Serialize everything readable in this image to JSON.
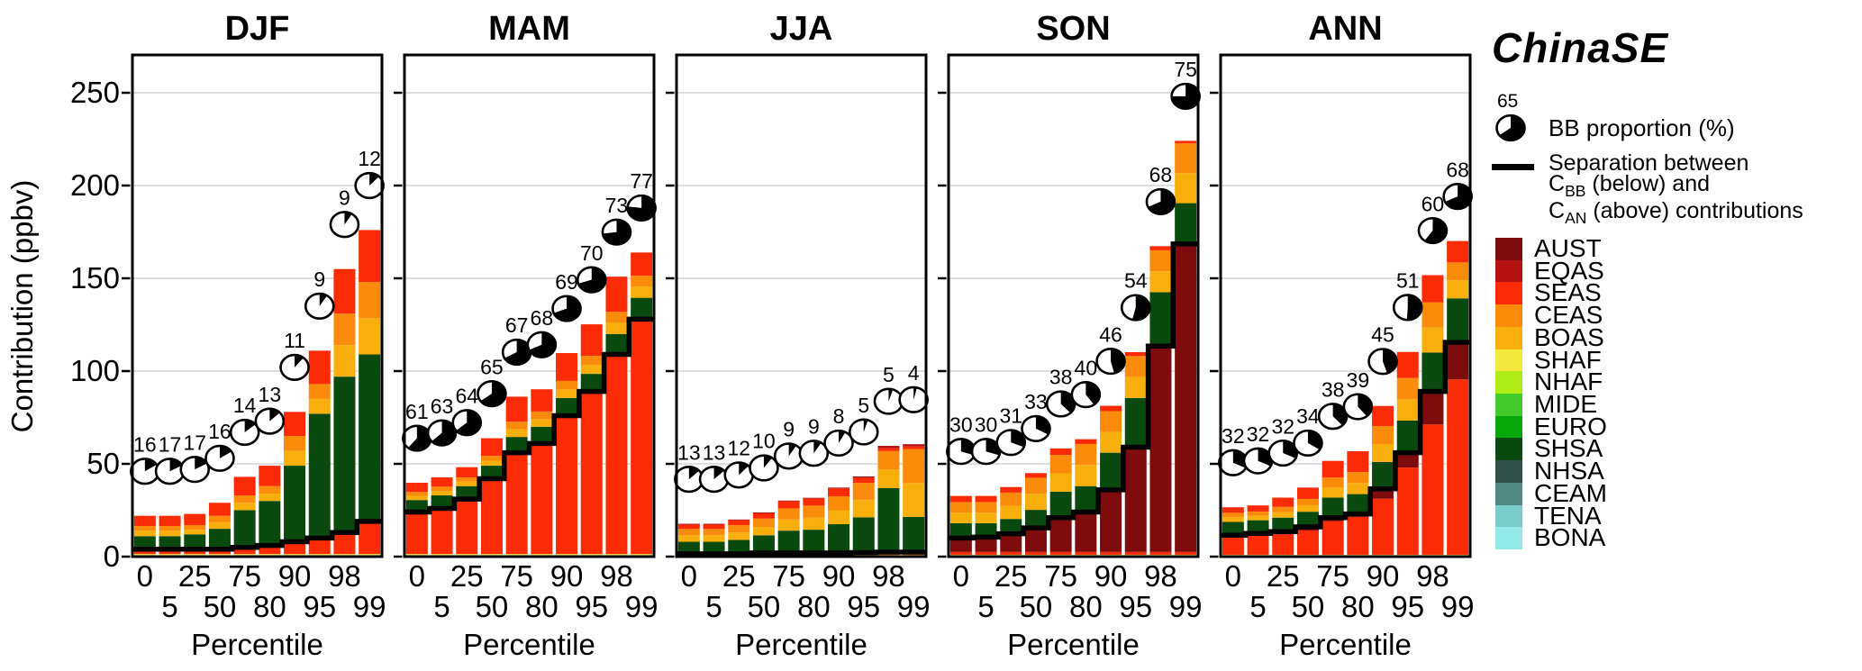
{
  "chart_data": {
    "type": "bar",
    "stacked": true,
    "title_right": "ChinaSE",
    "xlabel": "Percentile",
    "ylabel": "Contribution (ppbv)",
    "ylim": [
      0,
      270
    ],
    "yticks": [
      0,
      50,
      100,
      150,
      200,
      250
    ],
    "grid": true,
    "categories": [
      "0",
      "5",
      "25",
      "50",
      "75",
      "80",
      "90",
      "95",
      "98",
      "99"
    ],
    "regions": [
      {
        "name": "AUST",
        "color": "#7E0C0C"
      },
      {
        "name": "EQAS",
        "color": "#B51212"
      },
      {
        "name": "SEAS",
        "color": "#FB2C05"
      },
      {
        "name": "CEAS",
        "color": "#FB8C0B"
      },
      {
        "name": "BOAS",
        "color": "#F9AF0B"
      },
      {
        "name": "SHAF",
        "color": "#F2E93C"
      },
      {
        "name": "NHAF",
        "color": "#AEEB17"
      },
      {
        "name": "MIDE",
        "color": "#41CB2A"
      },
      {
        "name": "EURO",
        "color": "#07A60B"
      },
      {
        "name": "SHSA",
        "color": "#0B4A0E"
      },
      {
        "name": "NHSA",
        "color": "#315049"
      },
      {
        "name": "CEAM",
        "color": "#528A82"
      },
      {
        "name": "TENA",
        "color": "#79CCC8"
      },
      {
        "name": "BONA",
        "color": "#93E9E5"
      }
    ],
    "colors": {
      "separation_line": "#000000",
      "grid": "#d4d4d4",
      "pie_fill": "#ffffff",
      "pie_slice": "#000000",
      "panel_border": "#000000"
    },
    "panels": [
      {
        "title": "DJF",
        "bb_pie_pct": [
          16,
          17,
          17,
          16,
          14,
          13,
          11,
          9,
          9,
          12
        ],
        "cbb_separation": [
          4,
          4,
          4,
          4,
          5,
          6,
          8,
          10,
          13,
          19
        ],
        "series": [
          {
            "region": "NHAF",
            "part": "BB",
            "values": [
              0.7,
              0.7,
              0.7,
              0.7,
              0.7,
              0.7,
              0.7,
              0.7,
              0.7,
              0.7
            ]
          },
          {
            "region": "SHAF",
            "part": "BB",
            "values": [
              0.7,
              0.7,
              0.7,
              0.7,
              0.7,
              0.7,
              0.7,
              0.7,
              0.7,
              0.7
            ]
          },
          {
            "region": "SEAS",
            "part": "BB",
            "values": [
              2.6,
              2.6,
              2.6,
              2.6,
              3.6,
              4.6,
              6.6,
              8.6,
              11.6,
              17.6
            ]
          },
          {
            "region": "SHSA",
            "part": "AN",
            "values": [
              7,
              7,
              8,
              11,
              20,
              24,
              41,
              67,
              84,
              90
            ]
          },
          {
            "region": "BOAS",
            "part": "AN",
            "values": [
              3,
              3,
              2.5,
              3.5,
              4,
              4,
              8,
              8,
              17,
              19.5
            ]
          },
          {
            "region": "CEAS",
            "part": "AN",
            "values": [
              2.5,
              2.5,
              2.5,
              3.5,
              4,
              4,
              8,
              8,
              17,
              19.5
            ]
          },
          {
            "region": "SEAS",
            "part": "AN",
            "values": [
              5.5,
              5.5,
              6,
              7,
              10,
              11,
              13,
              18,
              24,
              28
            ]
          }
        ]
      },
      {
        "title": "MAM",
        "bb_pie_pct": [
          61,
          63,
          64,
          65,
          67,
          68,
          69,
          70,
          73,
          77
        ],
        "cbb_separation": [
          24,
          26,
          31,
          42,
          56,
          61,
          76,
          89,
          109,
          128
        ],
        "series": [
          {
            "region": "NHAF",
            "part": "BB",
            "values": [
              0.7,
              0.7,
              0.7,
              0.7,
              0.7,
              0.7,
              0.7,
              0.7,
              0.7,
              0.7
            ]
          },
          {
            "region": "SHAF",
            "part": "BB",
            "values": [
              0.7,
              0.7,
              0.7,
              0.7,
              0.7,
              0.7,
              0.7,
              0.7,
              0.7,
              0.7
            ]
          },
          {
            "region": "SEAS",
            "part": "BB",
            "values": [
              22.6,
              24.6,
              29.6,
              40.6,
              54.6,
              59.6,
              74.6,
              87.6,
              107.6,
              126.6
            ]
          },
          {
            "region": "SHSA",
            "part": "AN",
            "values": [
              6.5,
              7,
              7,
              7,
              8.5,
              9,
              9.5,
              9.5,
              11,
              11.5
            ]
          },
          {
            "region": "BOAS",
            "part": "AN",
            "values": [
              2.2,
              2.4,
              2.4,
              2.7,
              4.1,
              4.1,
              4.6,
              4.9,
              6,
              6
            ]
          },
          {
            "region": "CEAS",
            "part": "AN",
            "values": [
              2.1,
              2.3,
              2.3,
              2.6,
              4.1,
              4.1,
              4.6,
              4.8,
              5.9,
              5.9
            ]
          },
          {
            "region": "SEAS",
            "part": "AN",
            "values": [
              5,
              5,
              5.5,
              9.5,
              13.5,
              12,
              15,
              17,
              19,
              12.5
            ]
          }
        ]
      },
      {
        "title": "JJA",
        "bb_pie_pct": [
          13,
          13,
          12,
          10,
          9,
          9,
          8,
          5,
          5,
          4
        ],
        "cbb_separation": [
          1.5,
          1.5,
          1.5,
          2,
          2,
          2,
          2,
          2.2,
          2.4,
          2.4
        ],
        "series": [
          {
            "region": "NHAF",
            "part": "BB",
            "values": [
              0.4,
              0.4,
              0.4,
              0.4,
              0.4,
              0.4,
              0.4,
              0.4,
              0.4,
              0.4
            ]
          },
          {
            "region": "SHAF",
            "part": "BB",
            "values": [
              0.4,
              0.4,
              0.4,
              0.4,
              0.4,
              0.4,
              0.4,
              0.4,
              0.4,
              0.4
            ]
          },
          {
            "region": "CEAS",
            "part": "BB",
            "values": [
              0.3,
              0.3,
              0.3,
              0.8,
              0.8,
              0.8,
              0.8,
              1.0,
              1.2,
              1.2
            ]
          },
          {
            "region": "AUST",
            "part": "BB",
            "values": [
              0.4,
              0.4,
              0.4,
              0.4,
              0.4,
              0.4,
              0.4,
              0.4,
              0.4,
              0.4
            ]
          },
          {
            "region": "SHSA",
            "part": "AN",
            "values": [
              6.5,
              6.5,
              7.5,
              9.5,
              12,
              12.5,
              15.5,
              19,
              34.5,
              19
            ]
          },
          {
            "region": "BOAS",
            "part": "AN",
            "values": [
              3.5,
              3.5,
              4,
              4.5,
              6,
              6.5,
              7.5,
              9.3,
              10,
              18.3
            ]
          },
          {
            "region": "CEAS",
            "part": "AN",
            "values": [
              3.4,
              3.4,
              4,
              4.5,
              6,
              6.5,
              7.5,
              9.2,
              10,
              18.2
            ]
          },
          {
            "region": "SEAS",
            "part": "AN",
            "values": [
              2.3,
              2.3,
              2.5,
              2.8,
              3.7,
              3.7,
              4.2,
              2.8,
              1.5,
              1.5
            ]
          },
          {
            "region": "EQAS",
            "part": "AN",
            "values": [
              0.5,
              0.5,
              0.5,
              0.5,
              0.5,
              0.5,
              0.5,
              0.7,
              1.3,
              1.2
            ]
          }
        ]
      },
      {
        "title": "SON",
        "bb_pie_pct": [
          30,
          30,
          31,
          33,
          38,
          40,
          46,
          54,
          68,
          75
        ],
        "cbb_separation": [
          10,
          10.5,
          12.3,
          15.5,
          21,
          24,
          36,
          59,
          113.5,
          168.5
        ],
        "series": [
          {
            "region": "NHAF",
            "part": "BB",
            "values": [
              0.5,
              0.5,
              0.5,
              0.5,
              0.5,
              0.5,
              0.5,
              0.5,
              0.5,
              0.5
            ]
          },
          {
            "region": "SHAF",
            "part": "BB",
            "values": [
              0.5,
              0.5,
              0.5,
              0.5,
              0.5,
              0.5,
              0.5,
              0.5,
              0.5,
              0.5
            ]
          },
          {
            "region": "SEAS",
            "part": "BB",
            "values": [
              1.5,
              1.5,
              1.5,
              1.5,
              1.5,
              1.5,
              1.5,
              1.5,
              1.5,
              1.5
            ]
          },
          {
            "region": "AUST",
            "part": "BB",
            "values": [
              7.5,
              8,
              9.8,
              13,
              18.5,
              21.5,
              33.5,
              56.5,
              111,
              166
            ]
          },
          {
            "region": "SHSA",
            "part": "AN",
            "values": [
              8,
              7.5,
              8,
              9.7,
              14,
              14,
              20,
              26.5,
              29,
              22
            ]
          },
          {
            "region": "BOAS",
            "part": "AN",
            "values": [
              5.7,
              5.7,
              7.1,
              8.7,
              9.9,
              11.4,
              11.2,
              11.3,
              11.3,
              16.2
            ]
          },
          {
            "region": "CEAS",
            "part": "AN",
            "values": [
              5.7,
              5.7,
              7.1,
              8.6,
              9.9,
              11.3,
              11.2,
              11.3,
              11.3,
              16.1
            ]
          },
          {
            "region": "SEAS",
            "part": "AN",
            "values": [
              3.3,
              3.3,
              3,
              2.5,
              3.5,
              2.6,
              2.9,
              2.1,
              2.2,
              1.3
            ]
          }
        ]
      },
      {
        "title": "ANN",
        "bb_pie_pct": [
          32,
          32,
          32,
          34,
          38,
          39,
          45,
          51,
          60,
          68
        ],
        "cbb_separation": [
          11.5,
          12.5,
          13.5,
          16,
          21,
          23,
          36.5,
          56,
          89,
          115.5
        ],
        "series": [
          {
            "region": "NHAF",
            "part": "BB",
            "values": [
              0.5,
              0.5,
              0.5,
              0.5,
              0.5,
              0.5,
              0.5,
              0.5,
              0.5,
              0.5
            ]
          },
          {
            "region": "SHAF",
            "part": "BB",
            "values": [
              0.5,
              0.5,
              0.5,
              0.5,
              0.5,
              0.5,
              0.5,
              0.5,
              0.5,
              0.5
            ]
          },
          {
            "region": "SEAS",
            "part": "BB",
            "values": [
              9.5,
              10.2,
              11.1,
              13.1,
              18.1,
              20.4,
              30.2,
              47,
              70.2,
              94.5
            ]
          },
          {
            "region": "AUST",
            "part": "BB",
            "values": [
              1,
              1.3,
              1.4,
              1.9,
              1.9,
              1.6,
              5.3,
              8,
              17.8,
              20
            ]
          },
          {
            "region": "SHSA",
            "part": "AN",
            "values": [
              7.2,
              7.1,
              7.5,
              8.2,
              10.8,
              10.7,
              14.5,
              17.3,
              21,
              23.7
            ]
          },
          {
            "region": "BOAS",
            "part": "AN",
            "values": [
              2.5,
              2.4,
              2.9,
              3.5,
              5.4,
              6,
              9.7,
              11.5,
              13.5,
              9.7
            ]
          },
          {
            "region": "CEAS",
            "part": "AN",
            "values": [
              2.4,
              2.3,
              2.9,
              3.4,
              5.4,
              5.9,
              9.7,
              11.5,
              13.5,
              9.7
            ]
          },
          {
            "region": "SEAS",
            "part": "AN",
            "values": [
              3,
              3.3,
              5,
              6.1,
              9,
              11.2,
              10.8,
              14,
              14.7,
              11.5
            ]
          }
        ]
      }
    ]
  },
  "legend": {
    "title": "ChinaSE",
    "pie_value": "65",
    "pie_pct": 65,
    "pie_label": "BB proportion (%)",
    "sep_line1": "Separation between",
    "sep_line2_pre": "C",
    "sep_line2_sub": "BB",
    "sep_line2_post": " (below) and",
    "sep_line3_pre": "C",
    "sep_line3_sub": "AN",
    "sep_line3_post": " (above) contributions"
  }
}
